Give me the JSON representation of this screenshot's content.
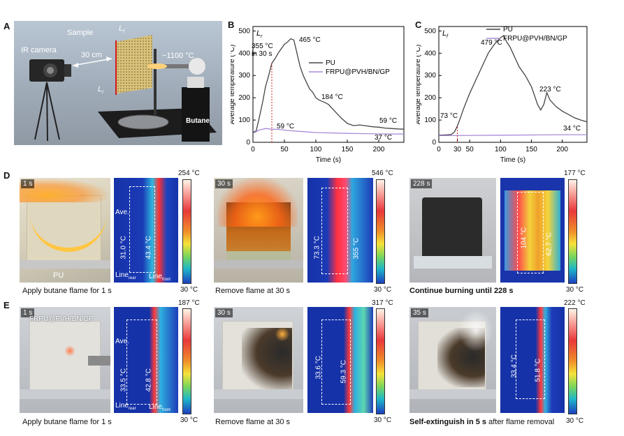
{
  "panels": {
    "A": {
      "letter": "A",
      "labels": {
        "sample": "Sample",
        "lf": "L",
        "lf_sub": "f",
        "lr": "L",
        "lr_sub": "r",
        "distance": "30 cm",
        "ir_camera": "IR camera",
        "flame_temp": "~1100 °C",
        "butane": "Butane"
      }
    },
    "B": {
      "letter": "B"
    },
    "C": {
      "letter": "C"
    },
    "D": {
      "letter": "D",
      "items": [
        {
          "time": "1 s",
          "sample": "PU",
          "ave": "Ave.",
          "rear_temp": "31.0 °C",
          "front_temp": "43.4 °C",
          "line_rear": "Line",
          "line_rear_sub": "rear",
          "line_front": "Line",
          "line_front_sub": "front",
          "cbar_max": "254 °C",
          "cbar_min": "30 °C",
          "caption": "Apply butane flame for 1 s",
          "caption_bold": ""
        },
        {
          "time": "30 s",
          "rear_temp": "73.3 °C",
          "front_temp": "355 °C",
          "cbar_max": "546 °C",
          "cbar_min": "30 °C",
          "caption": "Remove flame at 30 s",
          "caption_bold": ""
        },
        {
          "time": "228 s",
          "rear_temp": "104 °C",
          "front_temp": "62.7 °C",
          "cbar_max": "177 °C",
          "cbar_min": "30 °C",
          "caption": "",
          "caption_bold": "Continue burning until 228 s"
        }
      ]
    },
    "E": {
      "letter": "E",
      "items": [
        {
          "time": "1 s",
          "sample": "FRPU@PVH/BN/GP",
          "ave": "Ave.",
          "rear_temp": "33.5 °C",
          "front_temp": "42.8 °C",
          "line_rear": "Line",
          "line_rear_sub": "rear",
          "line_front": "Line",
          "line_front_sub": "front",
          "cbar_max": "187 °C",
          "cbar_min": "30 °C",
          "caption": "Apply butane flame for 1 s",
          "caption_bold": ""
        },
        {
          "time": "30 s",
          "rear_temp": "33.6 °C",
          "front_temp": "59.3 °C",
          "cbar_max": "317 °C",
          "cbar_min": "30 °C",
          "caption": "Remove flame at 30 s",
          "caption_bold": ""
        },
        {
          "time": "35 s",
          "rear_temp": "33.4 °C",
          "front_temp": "51.8 °C",
          "cbar_max": "222 °C",
          "cbar_min": "30 °C",
          "caption": " after flame removal",
          "caption_bold": "Self-extinguish in 5 s"
        }
      ]
    }
  },
  "chart_data": [
    {
      "panel": "B",
      "type": "line",
      "title": "",
      "corner_label": "L",
      "corner_label_sub": "r",
      "xlabel": "Time (s)",
      "ylabel": "Average temperature (°C)",
      "xlim": [
        0,
        240
      ],
      "ylim": [
        0,
        520
      ],
      "xticks": [
        0,
        50,
        100,
        150,
        200
      ],
      "yticks": [
        0,
        100,
        200,
        300,
        400,
        500
      ],
      "legend": "right",
      "series": [
        {
          "name": "PU",
          "color": "#444444",
          "x": [
            0,
            5,
            10,
            15,
            20,
            25,
            30,
            35,
            40,
            45,
            50,
            55,
            60,
            65,
            70,
            75,
            80,
            85,
            90,
            95,
            100,
            105,
            110,
            115,
            120,
            130,
            140,
            150,
            160,
            170,
            180,
            190,
            200,
            210,
            220,
            230,
            240
          ],
          "y": [
            45,
            50,
            110,
            175,
            250,
            300,
            355,
            375,
            400,
            420,
            440,
            450,
            465,
            460,
            400,
            340,
            300,
            270,
            240,
            225,
            200,
            190,
            184,
            178,
            170,
            140,
            110,
            85,
            75,
            78,
            74,
            70,
            68,
            64,
            62,
            60,
            59
          ]
        },
        {
          "name": "FRPU@PVH/BN/GP",
          "color": "#a98bd8",
          "x": [
            0,
            10,
            20,
            30,
            40,
            50,
            60,
            80,
            100,
            150,
            200,
            240
          ],
          "y": [
            40,
            55,
            62,
            59,
            58,
            55,
            52,
            48,
            44,
            40,
            38,
            37
          ]
        }
      ],
      "annotations": [
        "355 °C",
        "in 30 s",
        "465 °C",
        "184 °C",
        "59 °C",
        "59 °C",
        "37 °C"
      ]
    },
    {
      "panel": "C",
      "type": "line",
      "title": "",
      "corner_label": "L",
      "corner_label_sub": "f",
      "xlabel": "Time (s)",
      "ylabel": "Average temperature (°C)",
      "xlim": [
        0,
        240
      ],
      "ylim": [
        0,
        520
      ],
      "xticks": [
        0,
        30,
        50,
        100,
        150,
        200
      ],
      "yticks": [
        0,
        100,
        200,
        300,
        400,
        500
      ],
      "legend": "top-right",
      "series": [
        {
          "name": "PU",
          "color": "#444444",
          "x": [
            0,
            10,
            20,
            25,
            30,
            35,
            40,
            50,
            60,
            70,
            80,
            90,
            100,
            105,
            110,
            115,
            120,
            125,
            130,
            140,
            150,
            160,
            165,
            170,
            175,
            180,
            190,
            200,
            210,
            220,
            230,
            240
          ],
          "y": [
            32,
            33,
            35,
            45,
            73,
            110,
            150,
            220,
            280,
            340,
            400,
            440,
            470,
            479,
            450,
            430,
            400,
            370,
            340,
            300,
            250,
            170,
            145,
            170,
            223,
            190,
            160,
            140,
            125,
            110,
            100,
            92
          ]
        },
        {
          "name": "FRPU@PVH/BN/GP",
          "color": "#a98bd8",
          "x": [
            0,
            50,
            100,
            150,
            200,
            240
          ],
          "y": [
            30,
            31,
            32,
            33,
            34,
            34
          ]
        }
      ],
      "annotations": [
        "479 °C",
        "223 °C",
        "73 °C",
        "34 °C"
      ]
    }
  ]
}
